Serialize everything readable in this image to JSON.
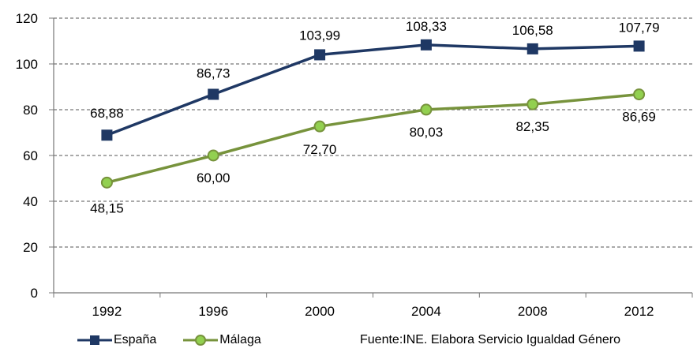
{
  "chart_data": {
    "type": "line",
    "categories": [
      "1992",
      "1996",
      "2000",
      "2004",
      "2008",
      "2012"
    ],
    "ylim": [
      0,
      120
    ],
    "yticks": [
      "0",
      "20",
      "40",
      "60",
      "80",
      "100",
      "120"
    ],
    "grid": "horizontal dashed",
    "legend": "bottom-left",
    "series": [
      {
        "name": "España",
        "values": [
          68.88,
          86.73,
          103.99,
          108.33,
          106.58,
          107.79
        ],
        "labels": [
          "68,88",
          "86,73",
          "103,99",
          "108,33",
          "106,58",
          "107,79"
        ],
        "color": "#1f3864",
        "marker": "square"
      },
      {
        "name": "Málaga",
        "values": [
          48.15,
          60.0,
          72.7,
          80.03,
          82.35,
          86.69
        ],
        "labels": [
          "48,15",
          "60,00",
          "72,70",
          "80,03",
          "82,35",
          "86,69"
        ],
        "color": "#77933c",
        "marker": "circle",
        "marker_fill": "#92d050"
      }
    ]
  },
  "source": "Fuente:INE. Elabora Servicio Igualdad Género"
}
